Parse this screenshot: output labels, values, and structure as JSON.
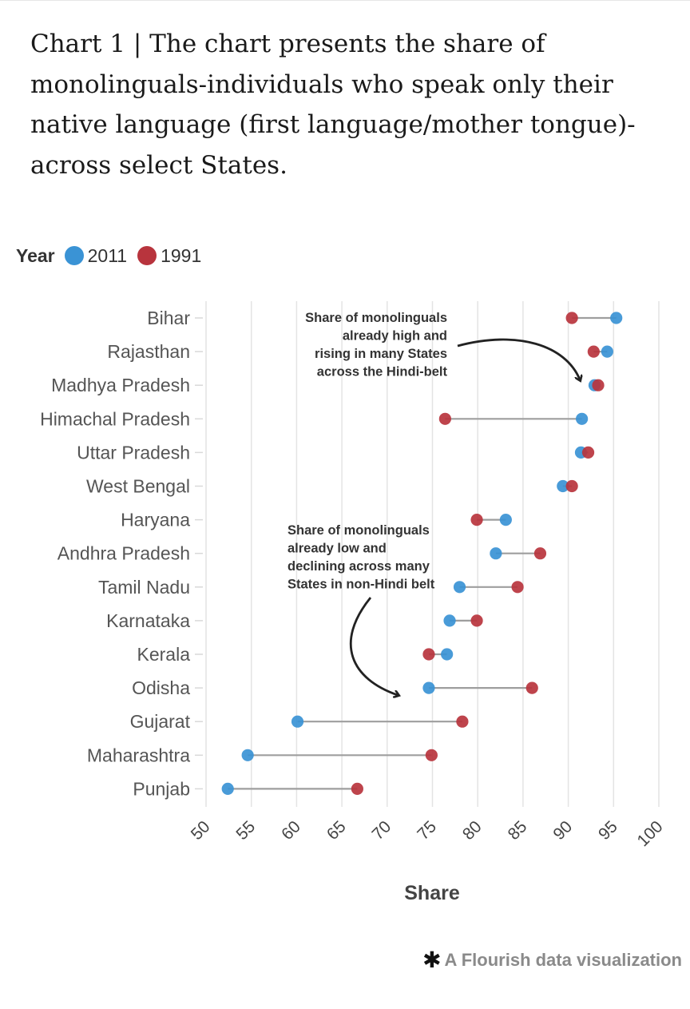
{
  "title": "Chart 1 | The chart presents the share of monolinguals-individuals who speak only their native language (first language/mother tongue)-across select States.",
  "legend": {
    "title": "Year"
  },
  "footer": {
    "text": "A Flourish data visualization",
    "icon": "flourish-star-icon"
  },
  "annotations": [
    {
      "id": "hindi-belt",
      "lines": [
        "Share of monolinguals",
        "already high and",
        "rising in many States",
        "across the Hindi-belt"
      ]
    },
    {
      "id": "non-hindi",
      "lines": [
        "Share of monolinguals",
        "already low and",
        "declining across many",
        "States in non-Hindi belt"
      ]
    }
  ],
  "chart_data": {
    "type": "dumbbell",
    "xlabel": "Share",
    "xlim": [
      50,
      100
    ],
    "xticks": [
      50,
      55,
      60,
      65,
      70,
      75,
      80,
      85,
      90,
      95,
      100
    ],
    "grid": true,
    "legend_position": "top-left",
    "categories": [
      "Bihar",
      "Rajasthan",
      "Madhya Pradesh",
      "Himachal Pradesh",
      "Uttar Pradesh",
      "West Bengal",
      "Haryana",
      "Andhra Pradesh",
      "Tamil Nadu",
      "Karnataka",
      "Kerala",
      "Odisha",
      "Gujarat",
      "Maharashtra",
      "Punjab"
    ],
    "series": [
      {
        "name": "2011",
        "color": "#3a93d5",
        "values": [
          95.3,
          94.3,
          92.9,
          91.5,
          91.4,
          89.4,
          83.1,
          82.0,
          78.0,
          76.9,
          76.6,
          74.6,
          60.1,
          54.6,
          52.4
        ]
      },
      {
        "name": "1991",
        "color": "#b8343d",
        "values": [
          90.4,
          92.8,
          93.3,
          76.4,
          92.2,
          90.4,
          79.9,
          86.9,
          84.4,
          79.9,
          74.6,
          86.0,
          78.3,
          74.9,
          66.7
        ]
      }
    ],
    "connector_color": "#9e9e9e"
  }
}
